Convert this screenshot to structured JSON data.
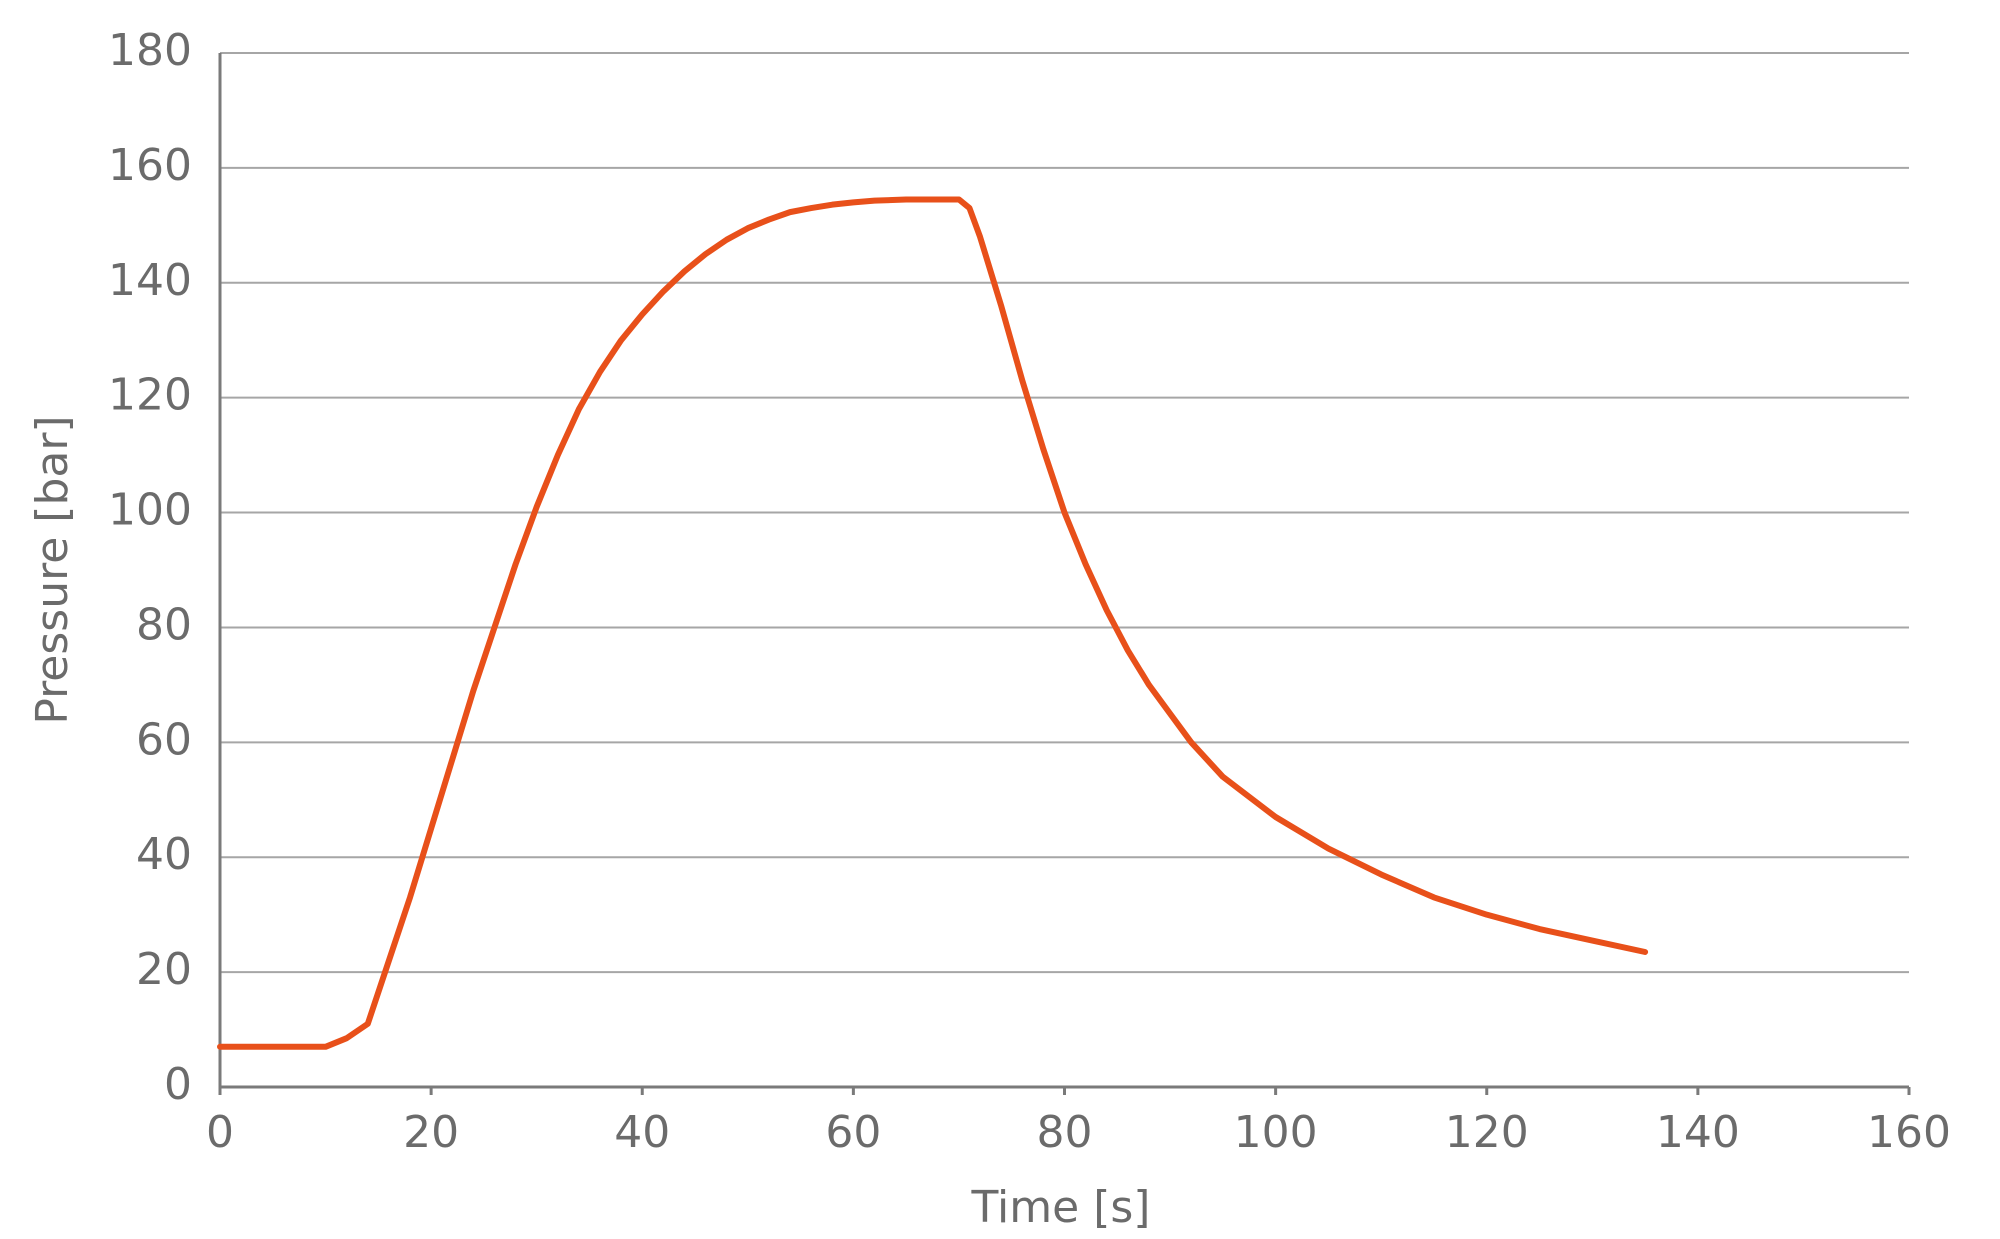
{
  "chart_data": {
    "type": "line",
    "xlabel": "Time [s]",
    "ylabel": "Pressure [bar]",
    "x": [
      0,
      5,
      10,
      12,
      14,
      16,
      18,
      20,
      22,
      24,
      26,
      28,
      30,
      32,
      34,
      36,
      38,
      40,
      42,
      44,
      46,
      48,
      50,
      52,
      54,
      56,
      58,
      60,
      62,
      65,
      68,
      70,
      71,
      72,
      74,
      76,
      78,
      80,
      82,
      84,
      86,
      88,
      90,
      92,
      95,
      100,
      105,
      110,
      115,
      120,
      125,
      130,
      135
    ],
    "series": [
      {
        "color": "#e8501a",
        "values": [
          7,
          7,
          7,
          8.5,
          11,
          22,
          33,
          45,
          57,
          69,
          80,
          91,
          101,
          110,
          118,
          124.5,
          130,
          134.5,
          138.5,
          142,
          145,
          147.5,
          149.5,
          151,
          152.3,
          153,
          153.6,
          154,
          154.3,
          154.5,
          154.5,
          154.5,
          153,
          148,
          136,
          123,
          111,
          100,
          91,
          83,
          76,
          70,
          65,
          60,
          54,
          47,
          41.5,
          37,
          33,
          30,
          27.5,
          25.5,
          23.5
        ]
      }
    ],
    "xlim": [
      0,
      160
    ],
    "xticks": [
      0,
      20,
      40,
      60,
      80,
      100,
      120,
      140,
      160
    ],
    "ylim": [
      0,
      180
    ],
    "yticks": [
      0,
      20,
      40,
      60,
      80,
      100,
      120,
      140,
      160,
      180
    ],
    "grid": true
  }
}
